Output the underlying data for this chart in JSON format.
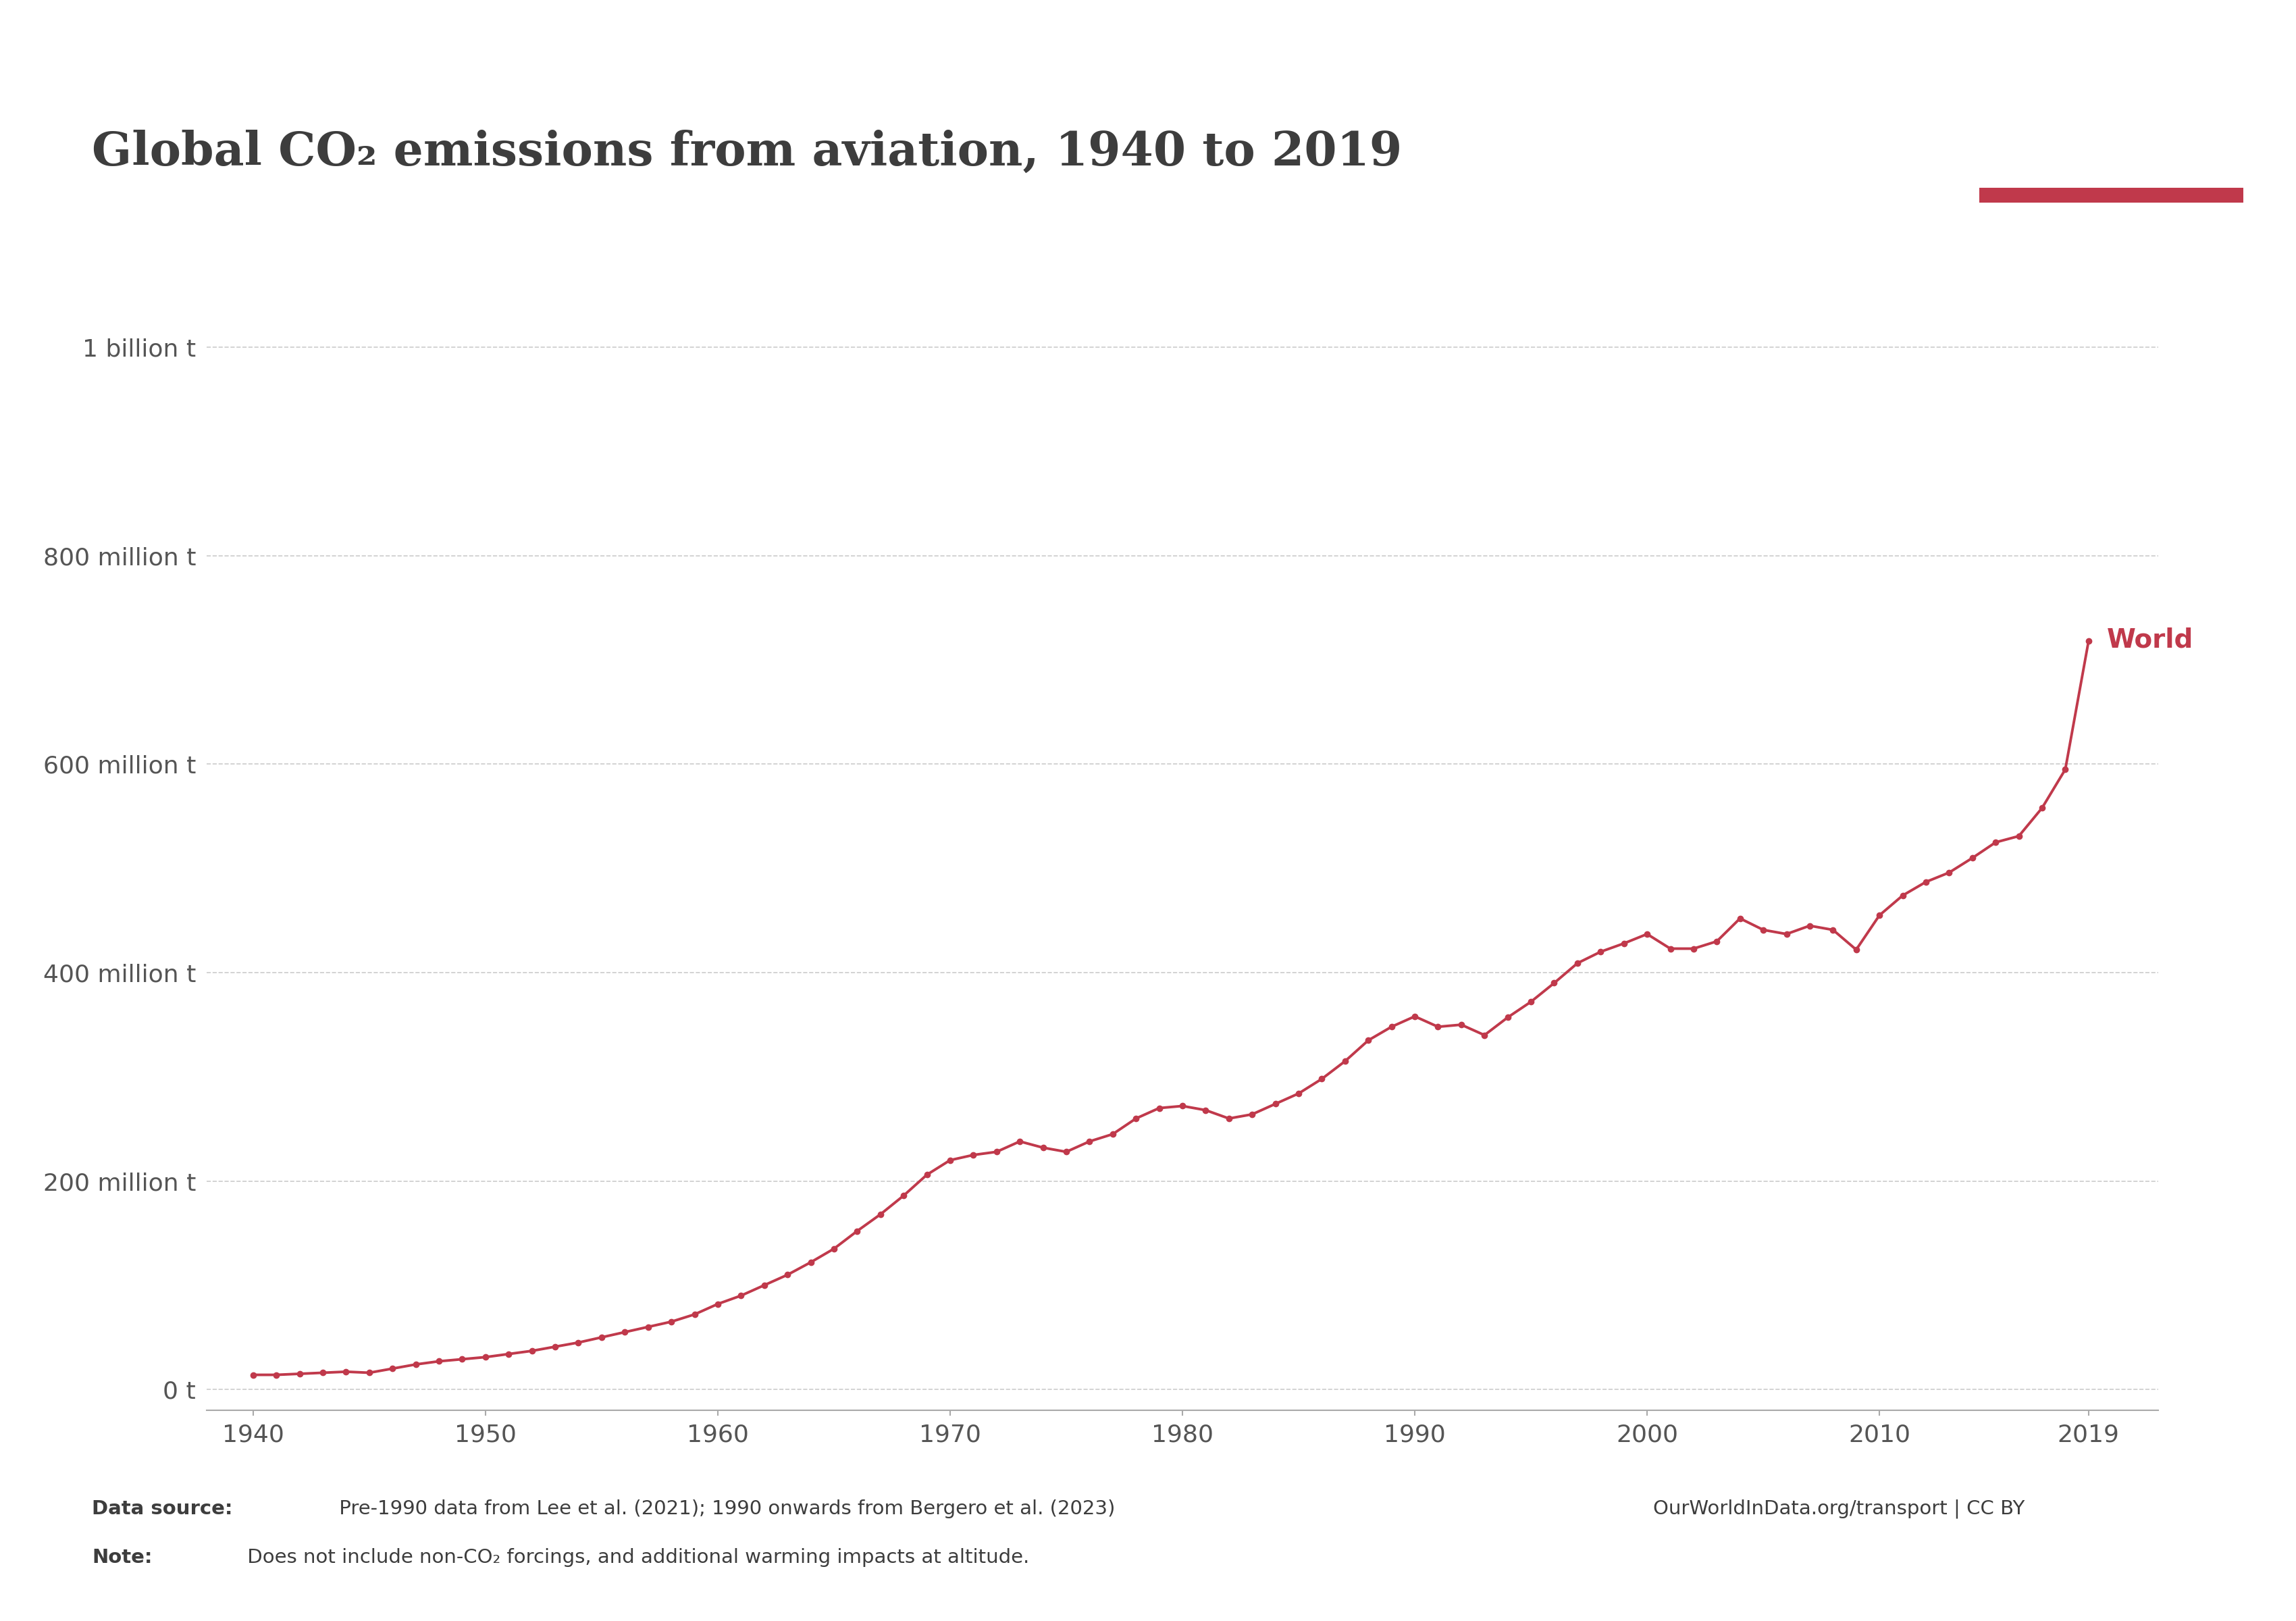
{
  "title": "Global CO₂ emissions from aviation, 1940 to 2019",
  "line_color": "#c0394b",
  "background_color": "#ffffff",
  "title_color": "#3d3d3d",
  "tick_color": "#555555",
  "grid_color": "#cccccc",
  "label_color": "#c0394b",
  "years": [
    1940,
    1941,
    1942,
    1943,
    1944,
    1945,
    1946,
    1947,
    1948,
    1949,
    1950,
    1951,
    1952,
    1953,
    1954,
    1955,
    1956,
    1957,
    1958,
    1959,
    1960,
    1961,
    1962,
    1963,
    1964,
    1965,
    1966,
    1967,
    1968,
    1969,
    1970,
    1971,
    1972,
    1973,
    1974,
    1975,
    1976,
    1977,
    1978,
    1979,
    1980,
    1981,
    1982,
    1983,
    1984,
    1985,
    1986,
    1987,
    1988,
    1989,
    1990,
    1991,
    1992,
    1993,
    1994,
    1995,
    1996,
    1997,
    1998,
    1999,
    2000,
    2001,
    2002,
    2003,
    2004,
    2005,
    2006,
    2007,
    2008,
    2009,
    2010,
    2011,
    2012,
    2013,
    2014,
    2015,
    2016,
    2017,
    2018,
    2019
  ],
  "values_million_t": [
    14,
    14,
    15,
    16,
    17,
    16,
    20,
    24,
    27,
    29,
    31,
    34,
    37,
    41,
    45,
    50,
    55,
    60,
    65,
    72,
    82,
    90,
    100,
    110,
    122,
    135,
    152,
    168,
    186,
    206,
    220,
    225,
    228,
    238,
    232,
    228,
    238,
    245,
    260,
    270,
    272,
    268,
    260,
    264,
    274,
    284,
    298,
    315,
    335,
    348,
    358,
    348,
    350,
    340,
    357,
    372,
    390,
    409,
    420,
    428,
    437,
    423,
    423,
    430,
    452,
    441,
    437,
    445,
    441,
    422,
    455,
    474,
    487,
    496,
    510,
    525,
    531,
    558,
    595,
    718
  ],
  "yticks_values": [
    0,
    200000000,
    400000000,
    600000000,
    800000000,
    1000000000
  ],
  "ytick_labels": [
    "0 t",
    "200 million t",
    "400 million t",
    "600 million t",
    "800 million t",
    "1 billion t"
  ],
  "xticks": [
    1940,
    1950,
    1960,
    1970,
    1980,
    1990,
    2000,
    2010,
    2019
  ],
  "xlim": [
    1938,
    2022
  ],
  "ylim": [
    -20000000,
    1100000000
  ],
  "datasource_bold": "Data source:",
  "datasource_normal": " Pre-1990 data from Lee et al. (2021); 1990 onwards from Bergero et al. (2023)",
  "website": "OurWorldInData.org/transport | CC BY",
  "note_bold": "Note:",
  "note_normal": " Does not include non-CO₂ forcings, and additional warming impacts at altitude.",
  "world_label": "World",
  "owid_bg_color": "#1a2e5a",
  "owid_text_color": "#ffffff",
  "owid_accent_color": "#c0394b"
}
